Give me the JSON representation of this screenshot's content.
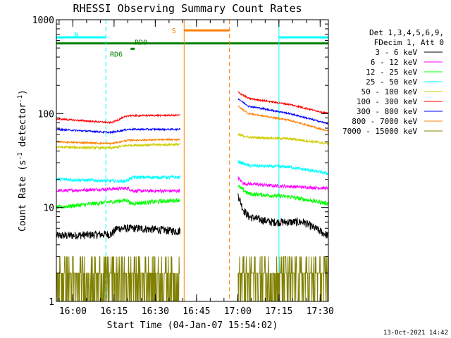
{
  "chart_data": {
    "type": "line",
    "title": "RHESSI Observing Summary Count Rates",
    "xlabel": "Start Time (04-Jan-07 15:54:02)",
    "ylabel_main": "Count Rate (s",
    "ylabel_sup1": "-1",
    "ylabel_mid": " detector",
    "ylabel_sup2": "-1",
    "ylabel_end": ")",
    "y_scale": "log",
    "ylim": [
      1,
      1000
    ],
    "xlim_minutes": [
      0,
      99
    ],
    "x_ticks": [
      {
        "label": "16:00",
        "minute": 6
      },
      {
        "label": "16:15",
        "minute": 21
      },
      {
        "label": "16:30",
        "minute": 36
      },
      {
        "label": "16:45",
        "minute": 51
      },
      {
        "label": "17:00",
        "minute": 66
      },
      {
        "label": "17:15",
        "minute": 81
      },
      {
        "label": "17:30",
        "minute": 96
      }
    ],
    "y_ticks": [
      {
        "label": "1",
        "value": 1
      },
      {
        "label": "10",
        "value": 10
      },
      {
        "label": "100",
        "value": 100
      },
      {
        "label": "1000",
        "value": 1000
      }
    ],
    "legend_header": [
      "Det 1,3,4,5,6,9,",
      "FDecim 1, Att 0"
    ],
    "legend_placement": "right",
    "gaps_minutes": [
      [
        45,
        66
      ]
    ],
    "series": [
      {
        "name": "3 - 6 keV",
        "color": "#000000",
        "noise": 0.1,
        "pts": [
          [
            0,
            5
          ],
          [
            20,
            5.2
          ],
          [
            22,
            6
          ],
          [
            30,
            6
          ],
          [
            44.5,
            5.6
          ],
          [
            66,
            14
          ],
          [
            68,
            9.5
          ],
          [
            70,
            8
          ],
          [
            78,
            7
          ],
          [
            90,
            7
          ],
          [
            99,
            5
          ]
        ]
      },
      {
        "name": "6 - 12 keV",
        "color": "#ff00ff",
        "noise": 0.04,
        "pts": [
          [
            0,
            15
          ],
          [
            26,
            16
          ],
          [
            28,
            15
          ],
          [
            44.5,
            15
          ],
          [
            66,
            21
          ],
          [
            68,
            18
          ],
          [
            80,
            17
          ],
          [
            99,
            16
          ]
        ]
      },
      {
        "name": "12 - 25 keV",
        "color": "#00ff00",
        "noise": 0.05,
        "pts": [
          [
            0,
            10
          ],
          [
            26,
            12
          ],
          [
            27,
            11
          ],
          [
            44.5,
            12
          ],
          [
            66,
            17
          ],
          [
            70,
            14
          ],
          [
            85,
            13
          ],
          [
            99,
            11
          ]
        ]
      },
      {
        "name": "25 - 50 keV",
        "color": "#00ffff",
        "noise": 0.04,
        "pts": [
          [
            0,
            20
          ],
          [
            25,
            19
          ],
          [
            28,
            21
          ],
          [
            44.5,
            21
          ],
          [
            66,
            31
          ],
          [
            70,
            28
          ],
          [
            85,
            27
          ],
          [
            99,
            23
          ]
        ]
      },
      {
        "name": "50 - 100 keV",
        "color": "#cccc00",
        "noise": 0.03,
        "pts": [
          [
            0,
            44
          ],
          [
            20,
            43
          ],
          [
            26,
            46
          ],
          [
            44.5,
            47
          ],
          [
            66,
            60
          ],
          [
            70,
            56
          ],
          [
            85,
            54
          ],
          [
            99,
            48
          ]
        ]
      },
      {
        "name": "100 - 300 keV",
        "color": "#ff0000",
        "noise": 0.02,
        "pts": [
          [
            0,
            88
          ],
          [
            20,
            80
          ],
          [
            26,
            95
          ],
          [
            44.5,
            96
          ],
          [
            66,
            170
          ],
          [
            70,
            145
          ],
          [
            85,
            125
          ],
          [
            99,
            100
          ]
        ]
      },
      {
        "name": "300 - 800 keV",
        "color": "#0000ff",
        "noise": 0.02,
        "pts": [
          [
            0,
            68
          ],
          [
            20,
            63
          ],
          [
            26,
            68
          ],
          [
            44.5,
            68
          ],
          [
            66,
            145
          ],
          [
            70,
            120
          ],
          [
            85,
            100
          ],
          [
            99,
            78
          ]
        ]
      },
      {
        "name": "800 - 7000 keV",
        "color": "#ff8000",
        "noise": 0.02,
        "pts": [
          [
            0,
            50
          ],
          [
            20,
            48
          ],
          [
            26,
            52
          ],
          [
            44.5,
            53
          ],
          [
            66,
            120
          ],
          [
            70,
            100
          ],
          [
            85,
            85
          ],
          [
            99,
            65
          ]
        ]
      },
      {
        "name": "7000 - 15000 keV",
        "color": "#808000",
        "noise": 0.0,
        "pts": [
          [
            0,
            2
          ],
          [
            99,
            2
          ]
        ]
      }
    ],
    "flag_lines": [
      {
        "label": "N",
        "color": "#00ffff",
        "value": 650,
        "segments": [
          [
            0,
            18
          ],
          [
            81,
            99
          ]
        ]
      },
      {
        "label": "S",
        "color": "#ff8000",
        "value": 770,
        "segments": [
          [
            46.5,
            63
          ]
        ]
      },
      {
        "label": "RD9",
        "color": "#008000",
        "value": 560,
        "segments": [
          [
            0,
            99
          ]
        ]
      },
      {
        "label": "RD6",
        "color": "#008000",
        "value": 490,
        "segments": [
          [
            27,
            28.5
          ]
        ]
      }
    ],
    "vlines": [
      {
        "color": "#00ffff",
        "minute": 0,
        "style": "solid"
      },
      {
        "color": "#00ffff",
        "minute": 18,
        "style": "dashed"
      },
      {
        "color": "#00ffff",
        "minute": 81,
        "style": "solid"
      },
      {
        "color": "#00ffff",
        "minute": 99,
        "style": "dashed"
      },
      {
        "color": "#ff8000",
        "minute": 46.5,
        "style": "solid"
      },
      {
        "color": "#ff8000",
        "minute": 63,
        "style": "dashed"
      }
    ],
    "bottom_right_label": "13-Oct-2021 14:42"
  }
}
